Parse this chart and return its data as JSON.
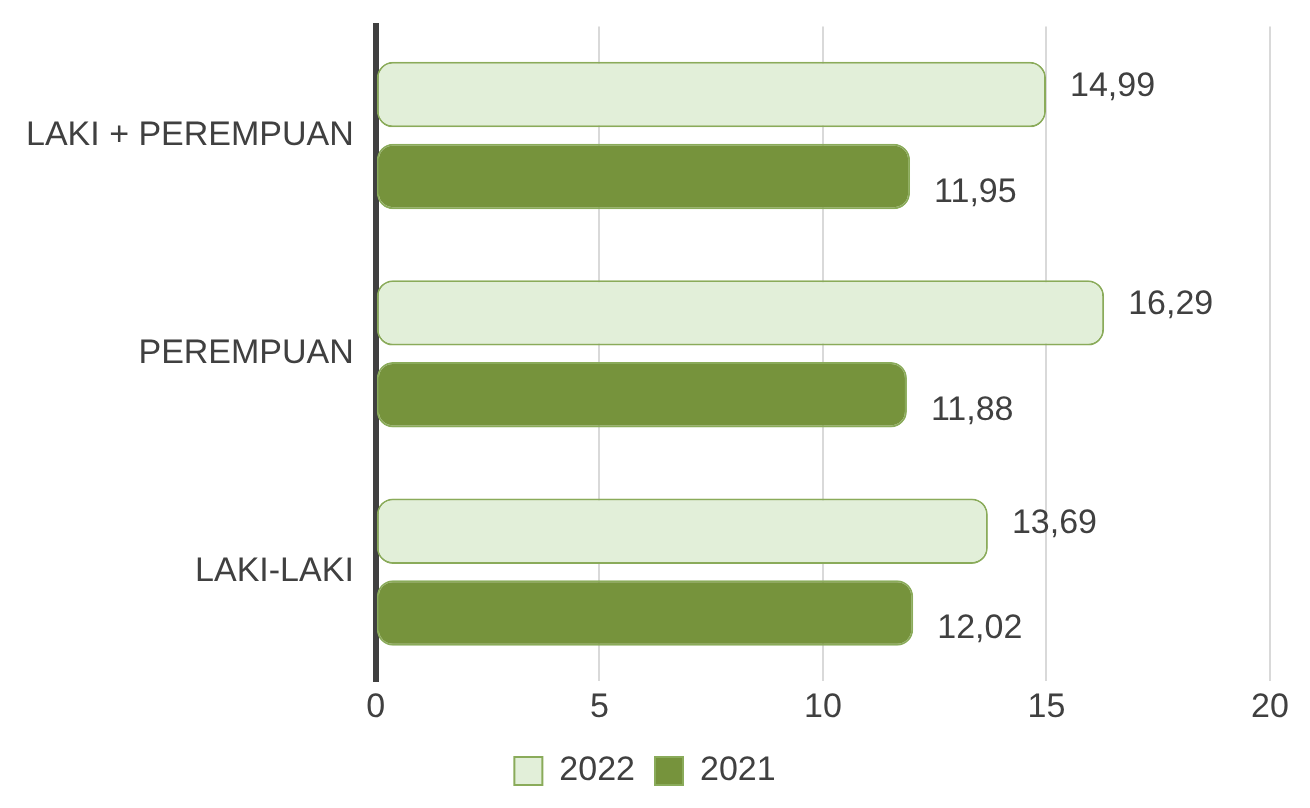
{
  "chart_data": {
    "type": "bar",
    "orientation": "horizontal",
    "categories": [
      "LAKI + PEREMPUAN",
      "PEREMPUAN",
      "LAKI-LAKI"
    ],
    "series": [
      {
        "name": "2022",
        "color": "#e2efd9",
        "values": [
          14.99,
          16.29,
          13.69
        ],
        "value_labels": [
          "14,99",
          "16,29",
          "13,69"
        ]
      },
      {
        "name": "2021",
        "color": "#76933c",
        "values": [
          11.95,
          11.88,
          12.02
        ],
        "value_labels": [
          "11,95",
          "11,88",
          "12,02"
        ]
      }
    ],
    "xlim": [
      0,
      20
    ],
    "xticks": [
      0,
      5,
      10,
      15,
      20
    ],
    "grid": "x",
    "legend": "bottom"
  }
}
